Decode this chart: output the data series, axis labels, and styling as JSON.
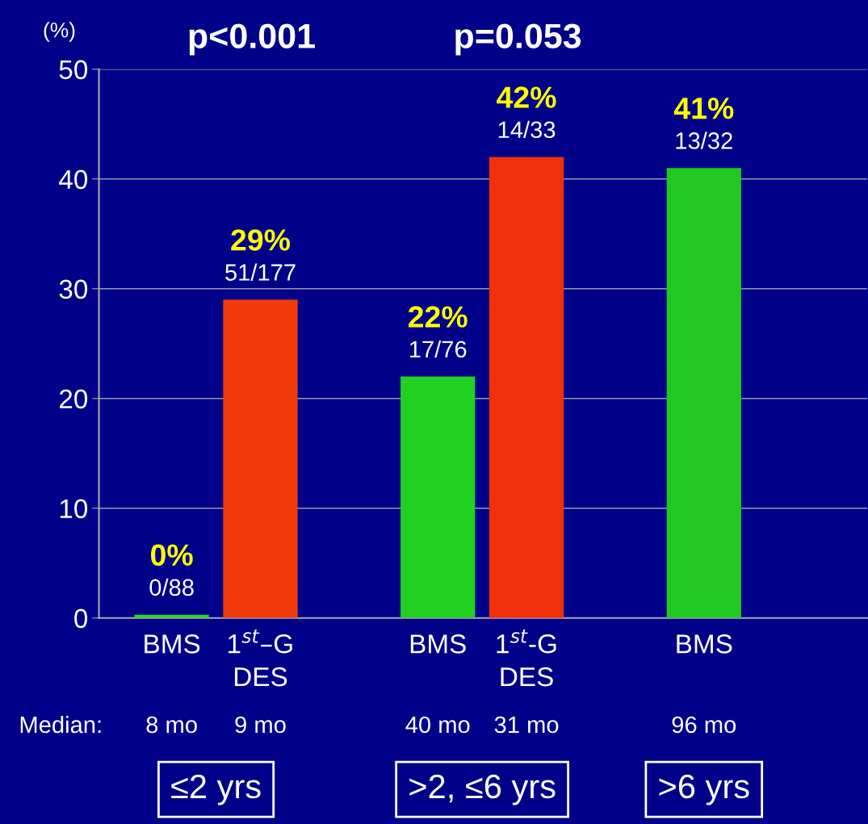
{
  "chart_data": {
    "type": "bar",
    "ylabel": "(%)",
    "categories": [
      "BMS",
      "1$^{st}$–G\nDES",
      null,
      "BMS",
      "1$^{st}$-G\nDES",
      null,
      "BMS"
    ],
    "values": [
      0.3,
      29,
      null,
      22,
      42,
      null,
      41
    ],
    "colors": [
      "#22dd22",
      "#f03a0a",
      null,
      "#22d022",
      "#f0300a",
      null,
      "#22c822"
    ],
    "value_labels": [
      "0%",
      "29%",
      null,
      "22%",
      "42%",
      null,
      "41%"
    ],
    "ylim": [
      0,
      50
    ],
    "yticks": [
      0,
      10,
      20,
      30,
      40,
      50
    ],
    "grid": "y",
    "legend": false,
    "annotations": [
      "0/88",
      "51/177",
      "17/76",
      "14/33",
      "13/32",
      "Median:",
      "8 mo",
      "9 mo",
      "40 mo",
      "31 mo",
      "96 mo",
      "≤2 yrs",
      ">2, ≤6 yrs",
      ">6 yrs",
      "p<0.001",
      "p=0.053"
    ]
  }
}
